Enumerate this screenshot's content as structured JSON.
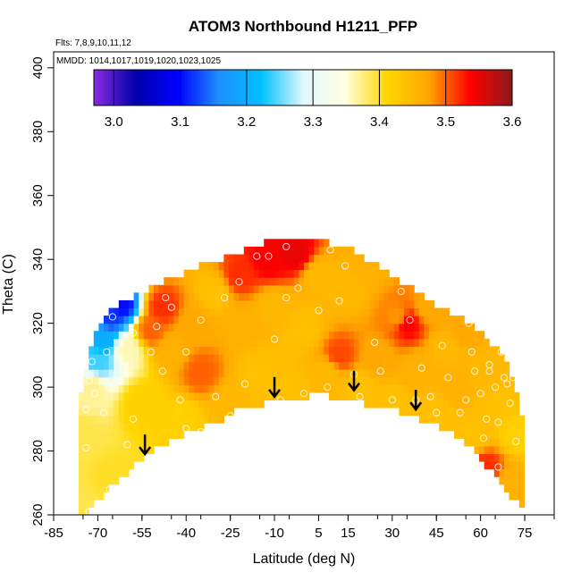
{
  "chart_data": {
    "type": "heatmap",
    "title": "ATOM3 Northbound H1211_PFP",
    "annotations": {
      "flights": "Flts: 7,8,9,10,11,12",
      "dates": "MMDD: 1014,1017,1019,1020,1023,1025"
    },
    "xlabel": "Latitude (deg N)",
    "ylabel": "Theta (C)",
    "xlim": [
      -85,
      85
    ],
    "ylim": [
      260,
      405
    ],
    "x_ticks": [
      -85,
      -70,
      -55,
      -40,
      -25,
      -10,
      5,
      15,
      30,
      45,
      60,
      75
    ],
    "x_tick_labels": [
      "-85",
      "-70",
      "-55",
      "-40",
      "-25",
      "-10",
      "5",
      "15",
      "30",
      "45",
      "60",
      "75"
    ],
    "y_ticks": [
      260,
      280,
      300,
      320,
      340,
      360,
      380,
      400
    ],
    "y_tick_labels": [
      "260",
      "280",
      "300",
      "320",
      "340",
      "360",
      "380",
      "400"
    ],
    "colorbar": {
      "ticks": [
        3.0,
        3.1,
        3.2,
        3.3,
        3.4,
        3.5,
        3.6
      ],
      "tick_labels": [
        "3.0",
        "3.1",
        "3.2",
        "3.3",
        "3.4",
        "3.5",
        "3.6"
      ],
      "range": [
        2.97,
        3.6
      ],
      "colors": [
        "#8a2be2",
        "#0000aa",
        "#0000ff",
        "#1e90ff",
        "#00bfff",
        "#e0f7ff",
        "#ffffe0",
        "#ffd700",
        "#ffa500",
        "#ff0000",
        "#8b1a1a"
      ]
    },
    "domain_bottom": [
      [
        -74,
        260
      ],
      [
        -73,
        262
      ],
      [
        -70,
        265
      ],
      [
        -62,
        271
      ],
      [
        -55,
        278
      ],
      [
        -40,
        286
      ],
      [
        -30,
        289
      ],
      [
        -20,
        294
      ],
      [
        -5,
        296
      ],
      [
        5,
        298
      ],
      [
        15,
        296
      ],
      [
        30,
        293
      ],
      [
        42,
        289
      ],
      [
        50,
        286
      ],
      [
        60,
        278
      ],
      [
        70,
        266
      ],
      [
        74,
        262
      ],
      [
        74,
        260
      ]
    ],
    "domain_top": [
      [
        -77,
        260
      ],
      [
        -77,
        287
      ],
      [
        -76,
        296
      ],
      [
        -73,
        310
      ],
      [
        -70,
        318
      ],
      [
        -65,
        325
      ],
      [
        -55,
        330
      ],
      [
        -45,
        334
      ],
      [
        -35,
        338
      ],
      [
        -25,
        341
      ],
      [
        -15,
        345
      ],
      [
        -5,
        346
      ],
      [
        5,
        346
      ],
      [
        15,
        344
      ],
      [
        25,
        338
      ],
      [
        35,
        332
      ],
      [
        45,
        326
      ],
      [
        55,
        321
      ],
      [
        62,
        316
      ],
      [
        68,
        309
      ],
      [
        72,
        300
      ],
      [
        74,
        290
      ],
      [
        75,
        260
      ]
    ],
    "values": [
      {
        "lat": -75,
        "theta": 262,
        "v": 3.39
      },
      {
        "lat": -75,
        "theta": 285,
        "v": 3.39
      },
      {
        "lat": -72,
        "theta": 300,
        "v": 3.37
      },
      {
        "lat": -70,
        "theta": 308,
        "v": 3.24
      },
      {
        "lat": -68,
        "theta": 315,
        "v": 3.2
      },
      {
        "lat": -66,
        "theta": 322,
        "v": 3.12
      },
      {
        "lat": -62,
        "theta": 326,
        "v": 3.1
      },
      {
        "lat": -60,
        "theta": 312,
        "v": 3.36
      },
      {
        "lat": -65,
        "theta": 272,
        "v": 3.4
      },
      {
        "lat": -55,
        "theta": 295,
        "v": 3.42
      },
      {
        "lat": -52,
        "theta": 318,
        "v": 3.5
      },
      {
        "lat": -48,
        "theta": 325,
        "v": 3.52
      },
      {
        "lat": -45,
        "theta": 312,
        "v": 3.46
      },
      {
        "lat": -42,
        "theta": 290,
        "v": 3.42
      },
      {
        "lat": -38,
        "theta": 320,
        "v": 3.47
      },
      {
        "lat": -35,
        "theta": 305,
        "v": 3.5
      },
      {
        "lat": -30,
        "theta": 330,
        "v": 3.44
      },
      {
        "lat": -25,
        "theta": 295,
        "v": 3.45
      },
      {
        "lat": -22,
        "theta": 335,
        "v": 3.52
      },
      {
        "lat": -20,
        "theta": 320,
        "v": 3.46
      },
      {
        "lat": -15,
        "theta": 305,
        "v": 3.44
      },
      {
        "lat": -12,
        "theta": 340,
        "v": 3.54
      },
      {
        "lat": -10,
        "theta": 325,
        "v": 3.45
      },
      {
        "lat": -5,
        "theta": 300,
        "v": 3.44
      },
      {
        "lat": -3,
        "theta": 342,
        "v": 3.55
      },
      {
        "lat": 0,
        "theta": 318,
        "v": 3.44
      },
      {
        "lat": 5,
        "theta": 335,
        "v": 3.45
      },
      {
        "lat": 8,
        "theta": 305,
        "v": 3.45
      },
      {
        "lat": 12,
        "theta": 310,
        "v": 3.51
      },
      {
        "lat": 15,
        "theta": 330,
        "v": 3.45
      },
      {
        "lat": 18,
        "theta": 300,
        "v": 3.44
      },
      {
        "lat": 22,
        "theta": 340,
        "v": 3.46
      },
      {
        "lat": 25,
        "theta": 310,
        "v": 3.47
      },
      {
        "lat": 30,
        "theta": 295,
        "v": 3.44
      },
      {
        "lat": 32,
        "theta": 322,
        "v": 3.48
      },
      {
        "lat": 35,
        "theta": 320,
        "v": 3.54
      },
      {
        "lat": 38,
        "theta": 305,
        "v": 3.46
      },
      {
        "lat": 42,
        "theta": 325,
        "v": 3.47
      },
      {
        "lat": 45,
        "theta": 292,
        "v": 3.44
      },
      {
        "lat": 48,
        "theta": 312,
        "v": 3.45
      },
      {
        "lat": 52,
        "theta": 300,
        "v": 3.46
      },
      {
        "lat": 55,
        "theta": 318,
        "v": 3.47
      },
      {
        "lat": 58,
        "theta": 285,
        "v": 3.44
      },
      {
        "lat": 60,
        "theta": 305,
        "v": 3.45
      },
      {
        "lat": 62,
        "theta": 275,
        "v": 3.52
      },
      {
        "lat": 65,
        "theta": 295,
        "v": 3.44
      },
      {
        "lat": 68,
        "theta": 308,
        "v": 3.45
      },
      {
        "lat": 70,
        "theta": 270,
        "v": 3.46
      },
      {
        "lat": 72,
        "theta": 285,
        "v": 3.42
      }
    ],
    "sample_points": [
      [
        -73,
        261
      ],
      [
        -74,
        281
      ],
      [
        -74,
        293
      ],
      [
        -71,
        298
      ],
      [
        -73,
        302
      ],
      [
        -72,
        308
      ],
      [
        -68,
        292
      ],
      [
        -66,
        268
      ],
      [
        -66,
        300
      ],
      [
        -67,
        311
      ],
      [
        -65,
        322
      ],
      [
        -60,
        282
      ],
      [
        -58,
        290
      ],
      [
        -58,
        317
      ],
      [
        -52,
        311
      ],
      [
        -50,
        319
      ],
      [
        -48,
        305
      ],
      [
        -47,
        328
      ],
      [
        -45,
        325
      ],
      [
        -42,
        296
      ],
      [
        -40,
        287
      ],
      [
        -40,
        311
      ],
      [
        -35,
        286
      ],
      [
        -35,
        321
      ],
      [
        -30,
        297
      ],
      [
        -27,
        328
      ],
      [
        -25,
        291
      ],
      [
        -22,
        333
      ],
      [
        -20,
        301
      ],
      [
        -16,
        341
      ],
      [
        -12,
        341
      ],
      [
        -10,
        315
      ],
      [
        -8,
        296
      ],
      [
        -6,
        344
      ],
      [
        -6,
        328
      ],
      [
        -2,
        331
      ],
      [
        0,
        298
      ],
      [
        5,
        324
      ],
      [
        8,
        300
      ],
      [
        9,
        343
      ],
      [
        12,
        327
      ],
      [
        14,
        338
      ],
      [
        17,
        304
      ],
      [
        19,
        297
      ],
      [
        22,
        343
      ],
      [
        24,
        314
      ],
      [
        26,
        305
      ],
      [
        27,
        342
      ],
      [
        30,
        296
      ],
      [
        33,
        330
      ],
      [
        36,
        321
      ],
      [
        38,
        296
      ],
      [
        40,
        306
      ],
      [
        43,
        297
      ],
      [
        45,
        292
      ],
      [
        47,
        313
      ],
      [
        49,
        303
      ],
      [
        51,
        282
      ],
      [
        53,
        292
      ],
      [
        55,
        296
      ],
      [
        56,
        320
      ],
      [
        57,
        311
      ],
      [
        58,
        305
      ],
      [
        60,
        298
      ],
      [
        61,
        284
      ],
      [
        62,
        290
      ],
      [
        63,
        307
      ],
      [
        63,
        305
      ],
      [
        65,
        300
      ],
      [
        66,
        289
      ],
      [
        66,
        275
      ],
      [
        67,
        311
      ],
      [
        68,
        303
      ],
      [
        69,
        301
      ],
      [
        70,
        295
      ],
      [
        71,
        309
      ],
      [
        71,
        303
      ],
      [
        72,
        283
      ],
      [
        73,
        260
      ]
    ],
    "arrows": [
      {
        "lat": -54,
        "theta": 279
      },
      {
        "lat": -10,
        "theta": 297
      },
      {
        "lat": 17,
        "theta": 299
      },
      {
        "lat": 38,
        "theta": 293
      }
    ]
  }
}
